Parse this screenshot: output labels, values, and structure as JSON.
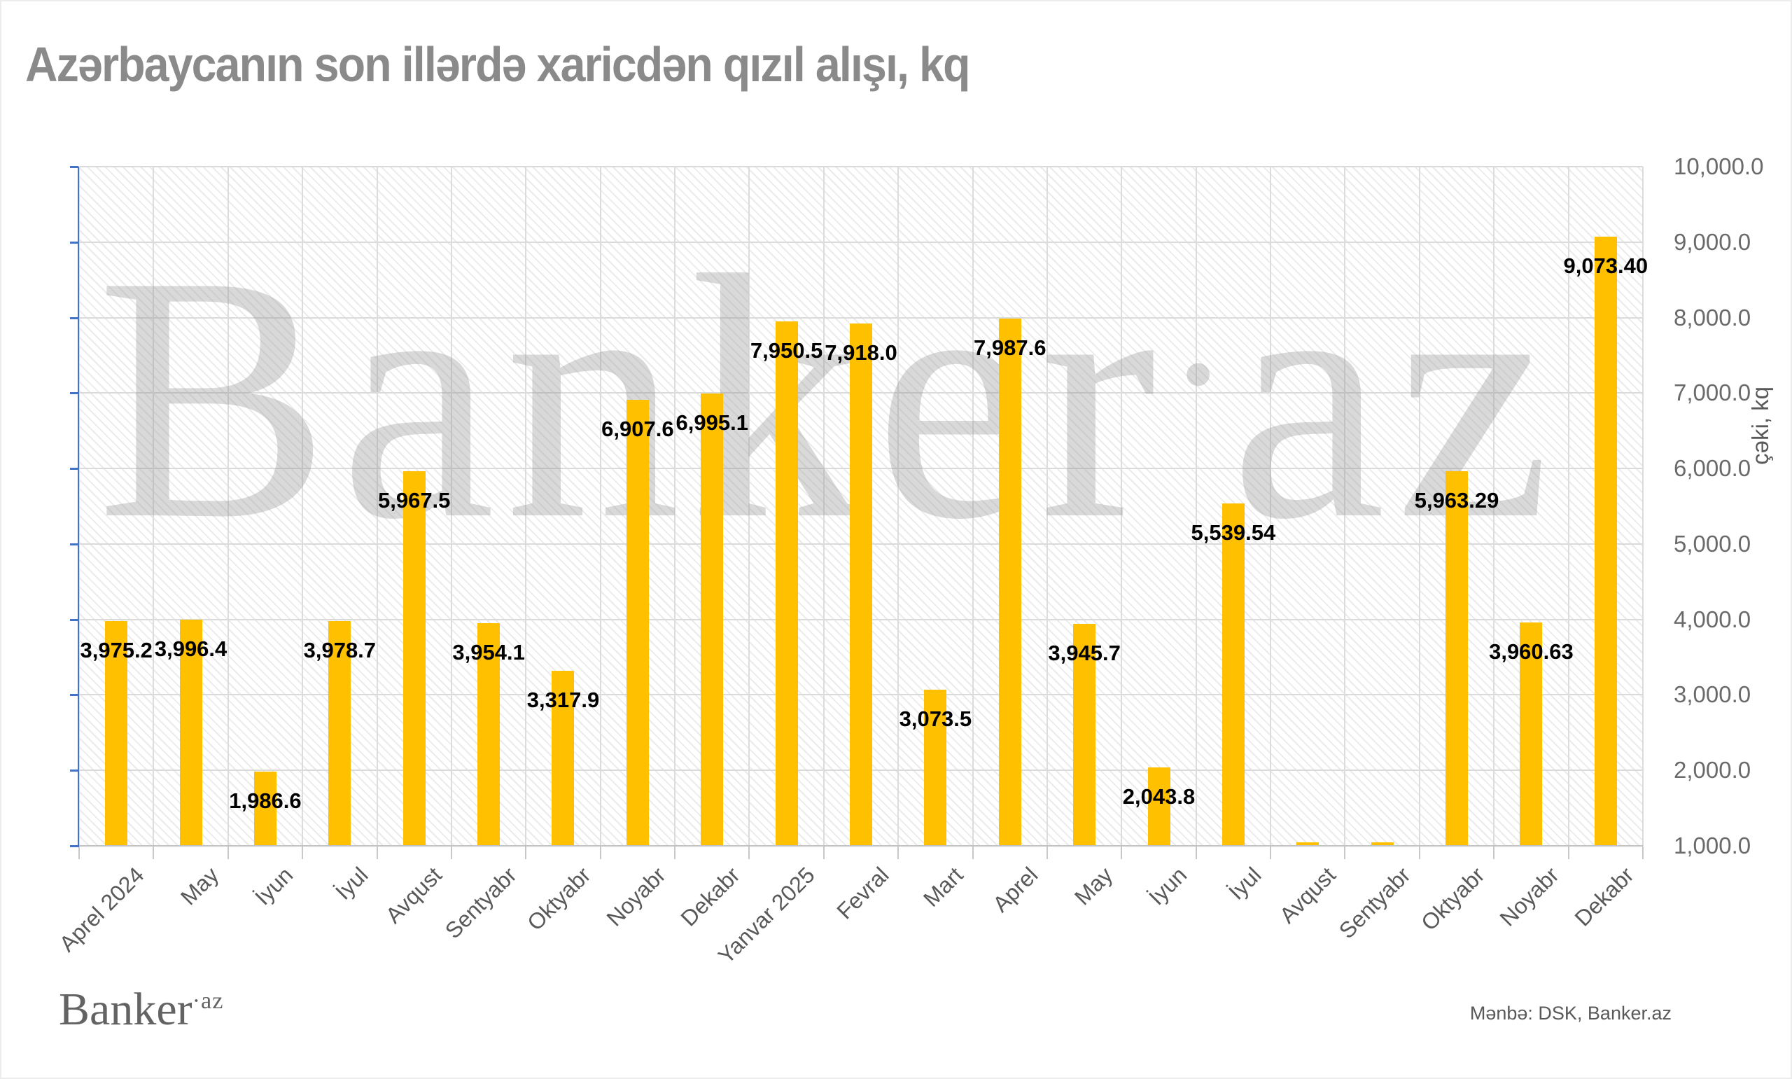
{
  "title": "Azərbaycanın son illərdə xaricdən qızıl alışı, kq",
  "watermark": {
    "prefix": "Banker",
    "dot": "·",
    "suffix": "az"
  },
  "logo": {
    "text": "Banker",
    "suffix": "·az"
  },
  "source_note": "Mənbə: DSK, Banker.az",
  "colors": {
    "bar": "#FFC000",
    "left_axis": "#4472C4",
    "gridline": "#DADADA",
    "baseline": "#C2C2C2",
    "title_text": "#8A8A8A",
    "axis_text": "#595959",
    "y_tick_text": "#6A6A6A",
    "data_label_text": "#000000",
    "watermark_gray": "#8E8E8E"
  },
  "chart_data": {
    "type": "bar",
    "title": "Azərbaycanın son illərdə xaricdən qızıl alışı, kq",
    "xlabel": "",
    "ylabel": "çəki, kq",
    "legend": null,
    "grid": true,
    "y_axis": {
      "side": "right",
      "min": 1000,
      "max": 10000,
      "step": 1000,
      "tick_labels": [
        "1,000.0",
        "2,000.0",
        "3,000.0",
        "4,000.0",
        "5,000.0",
        "6,000.0",
        "7,000.0",
        "8,000.0",
        "9,000.0",
        "10,000.0"
      ]
    },
    "categories": [
      "Aprel 2024",
      "May",
      "İyun",
      "İyul",
      "Avqust",
      "Sentyabr",
      "Oktyabr",
      "Noyabr",
      "Dekabr",
      "Yanvar 2025",
      "Fevral",
      "Mart",
      "Aprel",
      "May",
      "İyun",
      "İyul",
      "Avqust",
      "Sentyabr",
      "Oktyabr",
      "Noyabr",
      "Dekabr"
    ],
    "values": [
      3975.2,
      3996.4,
      1986.6,
      3978.7,
      5967.5,
      3954.1,
      3317.9,
      6907.6,
      6995.1,
      7950.5,
      7918.0,
      3073.5,
      7987.6,
      3945.7,
      2043.8,
      5539.54,
      null,
      null,
      5963.29,
      3960.63,
      9073.4
    ],
    "data_labels": [
      "3,975.2",
      "3,996.4",
      "1,986.6",
      "3,978.7",
      "5,967.5",
      "3,954.1",
      "3,317.9",
      "6,907.6",
      "6,995.1",
      "7,950.5",
      "7,918.0",
      "3,073.5",
      "7,987.6",
      "3,945.7",
      "2,043.8",
      "5,539.54",
      "",
      "",
      "5,963.29",
      "3,960.63",
      "9,073.40"
    ]
  }
}
